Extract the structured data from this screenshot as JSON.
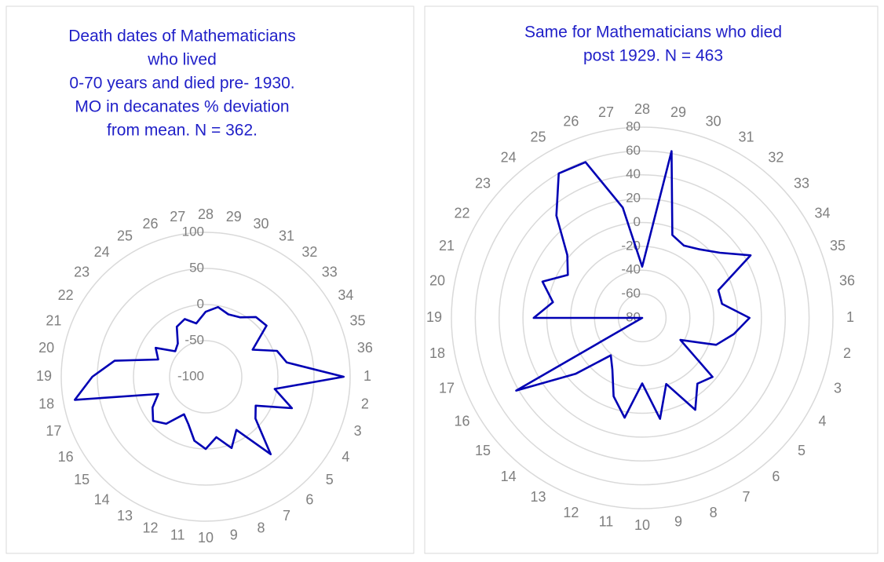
{
  "chart_data": [
    {
      "type": "radar",
      "title": [
        "Death dates of Mathematicians",
        "who lived",
        "0-70 years and died pre- 1930.",
        "MO in decanates % deviation",
        "from mean. N = 362."
      ],
      "categories": [
        "28",
        "29",
        "30",
        "31",
        "32",
        "33",
        "34",
        "35",
        "36",
        "1",
        "2",
        "3",
        "4",
        "5",
        "6",
        "7",
        "8",
        "9",
        "10",
        "11",
        "12",
        "13",
        "14",
        "15",
        "16",
        "17",
        "18",
        "19",
        "20",
        "21",
        "22",
        "23",
        "24",
        "25",
        "26",
        "27"
      ],
      "series": [
        {
          "color": "#0000b4",
          "values": [
            -10,
            -2,
            -8,
            -5,
            8,
            10,
            -25,
            5,
            14,
            91,
            -3,
            27,
            -20,
            -10,
            40,
            -15,
            5,
            -15,
            0,
            -10,
            -30,
            -40,
            -15,
            -5,
            -15,
            -30,
            84,
            57,
            28,
            -30,
            -20,
            -45,
            -40,
            -20,
            -15,
            -25
          ]
        }
      ],
      "ylim": [
        -100,
        100
      ],
      "yticks": [
        -100,
        -50,
        0,
        50,
        100
      ],
      "grid": true
    },
    {
      "type": "radar",
      "title": [
        "Same for Mathematicians who died",
        "post 1929. N = 463"
      ],
      "categories": [
        "28",
        "29",
        "30",
        "31",
        "32",
        "33",
        "34",
        "35",
        "36",
        "1",
        "2",
        "3",
        "4",
        "5",
        "6",
        "7",
        "8",
        "9",
        "10",
        "11",
        "12",
        "13",
        "14",
        "15",
        "16",
        "17",
        "18",
        "19",
        "20",
        "21",
        "22",
        "23",
        "24",
        "25",
        "26",
        "27"
      ],
      "series": [
        {
          "color": "#0000b4",
          "values": [
            -37,
            62,
            -6,
            -10,
            -5,
            5,
            25,
            -12,
            -12,
            10,
            -2,
            -14,
            -43,
            -3,
            -8,
            9,
            -21,
            6,
            -25,
            5,
            -10,
            -30,
            -39,
            -7,
            42,
            -80,
            -80,
            11,
            -4,
            9,
            -8,
            2,
            32,
            60,
            59,
            14
          ]
        }
      ],
      "ylim": [
        -80,
        80
      ],
      "yticks": [
        -80,
        -60,
        -40,
        -20,
        0,
        20,
        40,
        60,
        80
      ],
      "grid": true
    }
  ]
}
